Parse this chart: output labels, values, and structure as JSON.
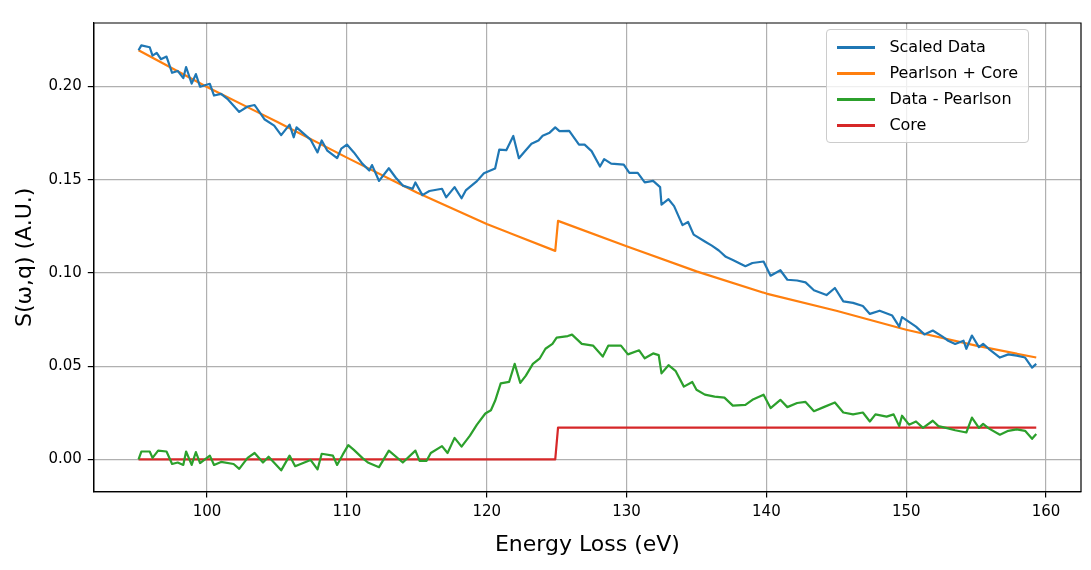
{
  "chart_data": {
    "type": "line",
    "xlabel": "Energy Loss (eV)",
    "ylabel": "S(ω,q) (A.U.)",
    "xlim": [
      91.9,
      162.5
    ],
    "ylim": [
      -0.0173,
      0.234
    ],
    "xticks": [
      100,
      110,
      120,
      130,
      140,
      150,
      160
    ],
    "yticks": [
      {
        "value": 0,
        "label": "0.00"
      },
      {
        "value": 0.05,
        "label": "0.05"
      },
      {
        "value": 0.1,
        "label": "0.10"
      },
      {
        "value": 0.15,
        "label": "0.15"
      },
      {
        "value": 0.2,
        "label": "0.20"
      }
    ],
    "grid": true,
    "legend": "top right",
    "series": [
      {
        "name": "Scaled Data",
        "color": "#1f77b4",
        "x": [
          95.1,
          95.3,
          95.9,
          96.1,
          96.4,
          96.7,
          97.1,
          97.5,
          97.9,
          98.3,
          98.5,
          98.9,
          99.2,
          99.5,
          100.2,
          100.5,
          101.0,
          101.5,
          102.3,
          102.9,
          103.4,
          104.1,
          104.8,
          105.3,
          105.9,
          106.2,
          106.4,
          107.4,
          107.9,
          108.2,
          108.6,
          109.3,
          109.6,
          110.0,
          110.5,
          111.1,
          111.6,
          111.8,
          112.3,
          113.0,
          113.5,
          114.0,
          114.7,
          114.9,
          115.4,
          115.9,
          116.8,
          117.1,
          117.7,
          118.2,
          118.5,
          119.3,
          119.8,
          120.6,
          120.9,
          121.4,
          121.9,
          122.3,
          122.7,
          123.2,
          123.7,
          124.0,
          124.5,
          124.9,
          125.2,
          125.9,
          126.6,
          127.0,
          127.5,
          128.1,
          128.4,
          128.9,
          129.8,
          130.2,
          130.8,
          131.3,
          131.9,
          132.4,
          132.5,
          133.0,
          133.4,
          134.0,
          134.4,
          134.8,
          135.6,
          136.1,
          136.6,
          137.1,
          137.6,
          138.5,
          139.0,
          139.8,
          140.3,
          141.0,
          141.5,
          142.2,
          142.8,
          143.4,
          144.3,
          144.9,
          145.5,
          146.2,
          146.9,
          147.4,
          148.1,
          149.0,
          149.5,
          149.7,
          150.7,
          151.3,
          151.9,
          152.6,
          153.0,
          153.5,
          154.1,
          154.3,
          154.7,
          155.2,
          155.5,
          155.9,
          156.7,
          157.3,
          157.9,
          158.5,
          159.0,
          159.3
        ],
        "values": [
          0.2194,
          0.222,
          0.221,
          0.2165,
          0.218,
          0.2146,
          0.216,
          0.2073,
          0.2083,
          0.2044,
          0.2104,
          0.2015,
          0.2066,
          0.1998,
          0.2014,
          0.1951,
          0.196,
          0.193,
          0.1863,
          0.1892,
          0.19,
          0.1824,
          0.179,
          0.1739,
          0.1795,
          0.1727,
          0.178,
          0.1715,
          0.1646,
          0.171,
          0.1655,
          0.1615,
          0.1666,
          0.1688,
          0.1646,
          0.1586,
          0.1549,
          0.1578,
          0.1493,
          0.1561,
          0.151,
          0.1468,
          0.1451,
          0.1485,
          0.1417,
          0.1439,
          0.1451,
          0.1405,
          0.146,
          0.14,
          0.1442,
          0.1492,
          0.1534,
          0.156,
          0.1661,
          0.1658,
          0.1734,
          0.1615,
          0.165,
          0.1692,
          0.171,
          0.1735,
          0.1752,
          0.178,
          0.176,
          0.1762,
          0.1688,
          0.1688,
          0.1653,
          0.157,
          0.161,
          0.1586,
          0.158,
          0.1536,
          0.1536,
          0.1485,
          0.1493,
          0.146,
          0.1366,
          0.1395,
          0.1358,
          0.1256,
          0.1273,
          0.1205,
          0.1168,
          0.1146,
          0.112,
          0.1086,
          0.1069,
          0.1036,
          0.1053,
          0.1061,
          0.0985,
          0.1014,
          0.0963,
          0.0959,
          0.0949,
          0.0907,
          0.0881,
          0.0919,
          0.0847,
          0.0839,
          0.0822,
          0.078,
          0.0797,
          0.0771,
          0.0712,
          0.0763,
          0.0712,
          0.067,
          0.0691,
          0.0658,
          0.0636,
          0.0619,
          0.0636,
          0.0593,
          0.0664,
          0.0602,
          0.0619,
          0.0593,
          0.0546,
          0.0563,
          0.0556,
          0.0546,
          0.0492,
          0.0512
        ]
      },
      {
        "name": "Pearlson + Core",
        "color": "#ff7f0e",
        "x": [
          95.1,
          100,
          105,
          110,
          115,
          120,
          124.9,
          125.1,
          130,
          135,
          140,
          145,
          150,
          155,
          159.3
        ],
        "values": [
          0.2194,
          0.1997,
          0.181,
          0.1618,
          0.1431,
          0.1262,
          0.1118,
          0.1279,
          0.1143,
          0.1008,
          0.0889,
          0.0797,
          0.0695,
          0.061,
          0.0546
        ]
      },
      {
        "name": "Data - Pearlson",
        "color": "#2ca02c",
        "x": [
          95.1,
          95.3,
          95.9,
          96.1,
          96.5,
          97.1,
          97.5,
          97.9,
          98.3,
          98.5,
          98.9,
          99.2,
          99.5,
          100.2,
          100.5,
          101.0,
          101.9,
          102.3,
          102.9,
          103.4,
          104.0,
          104.4,
          105.3,
          105.9,
          106.3,
          107.4,
          107.9,
          108.2,
          109.0,
          109.3,
          109.7,
          110.1,
          110.5,
          111.1,
          111.5,
          112.3,
          113.0,
          114.0,
          114.9,
          115.2,
          115.7,
          116.0,
          116.8,
          117.2,
          117.7,
          118.2,
          118.8,
          119.3,
          119.9,
          120.3,
          120.6,
          121.0,
          121.6,
          122.0,
          122.4,
          122.8,
          123.3,
          123.8,
          124.2,
          124.7,
          125.0,
          125.8,
          126.1,
          126.8,
          127.6,
          128.3,
          128.7,
          129.6,
          130.1,
          130.9,
          131.3,
          131.9,
          132.3,
          132.5,
          133.0,
          133.5,
          134.1,
          134.7,
          135.0,
          135.6,
          136.3,
          137.0,
          137.6,
          138.5,
          139.0,
          139.8,
          140.3,
          141.0,
          141.5,
          142.2,
          142.8,
          143.4,
          144.1,
          144.9,
          145.5,
          146.2,
          146.9,
          147.4,
          147.8,
          148.6,
          149.1,
          149.5,
          149.7,
          150.2,
          150.7,
          151.2,
          151.9,
          152.3,
          153.0,
          153.5,
          154.3,
          154.7,
          155.2,
          155.5,
          155.9,
          156.7,
          157.3,
          157.9,
          158.5,
          159.0,
          159.3
        ],
        "values": [
          0,
          0.0042,
          0.0042,
          0.0008,
          0.0047,
          0.0042,
          -0.0025,
          -0.0017,
          -0.003,
          0.0042,
          -0.003,
          0.0039,
          -0.002,
          0.002,
          -0.003,
          -0.0014,
          -0.0025,
          -0.0051,
          0.0008,
          0.0034,
          -0.0017,
          0.0014,
          -0.0059,
          0.002,
          -0.0037,
          -0.0003,
          -0.0054,
          0.003,
          0.002,
          -0.003,
          0.0025,
          0.0076,
          0.0051,
          0.0008,
          -0.0017,
          -0.0042,
          0.0047,
          -0.0017,
          0.0047,
          -0.0008,
          -0.0008,
          0.0034,
          0.0071,
          0.0034,
          0.0115,
          0.0068,
          0.0127,
          0.0186,
          0.0246,
          0.0263,
          0.0314,
          0.0407,
          0.0415,
          0.0512,
          0.041,
          0.0449,
          0.0512,
          0.0542,
          0.0593,
          0.0619,
          0.0653,
          0.0661,
          0.0669,
          0.0619,
          0.061,
          0.0551,
          0.061,
          0.061,
          0.0563,
          0.0585,
          0.0542,
          0.0568,
          0.0559,
          0.0461,
          0.0505,
          0.0475,
          0.039,
          0.0415,
          0.0373,
          0.0347,
          0.0336,
          0.0331,
          0.0288,
          0.0292,
          0.0319,
          0.0347,
          0.0275,
          0.0319,
          0.028,
          0.0302,
          0.0308,
          0.0258,
          0.028,
          0.0305,
          0.0251,
          0.0241,
          0.0251,
          0.0203,
          0.0241,
          0.0229,
          0.0241,
          0.0178,
          0.0234,
          0.0186,
          0.0203,
          0.0169,
          0.0207,
          0.0178,
          0.0166,
          0.0156,
          0.0144,
          0.0224,
          0.0169,
          0.019,
          0.0166,
          0.0132,
          0.0153,
          0.0161,
          0.0153,
          0.011,
          0.0136
        ]
      },
      {
        "name": "Core",
        "color": "#d62728",
        "x": [
          95.1,
          124.9,
          125.1,
          159.3
        ],
        "values": [
          0,
          0,
          0.017,
          0.017
        ]
      }
    ]
  }
}
